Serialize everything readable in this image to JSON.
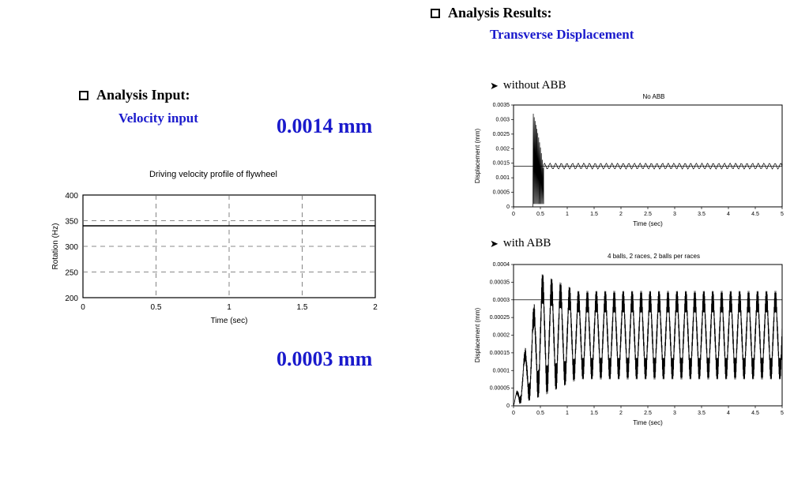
{
  "headers": {
    "results": "Analysis Results:",
    "results_sub": "Transverse Displacement",
    "input": "Analysis Input:",
    "input_sub": "Velocity input"
  },
  "readouts": {
    "r1": "0.0014 mm",
    "r2": "0.0003 mm"
  },
  "labels": {
    "without": "without ABB",
    "with": "with ABB"
  },
  "velocity_chart": {
    "type": "line",
    "title": "Driving velocity profile of flywheel",
    "xlabel": "Time (sec)",
    "ylabel": "Rotation (Hz)",
    "xlim": [
      0,
      2
    ],
    "ylim": [
      200,
      400
    ],
    "xticks": [
      0,
      0.5,
      1,
      1.5,
      2
    ],
    "yticks": [
      200,
      250,
      300,
      350,
      400
    ],
    "grid_style": "dashed",
    "grid_color": "#666666",
    "axis_color": "#000000",
    "data_y": 340,
    "line_color": "#000000",
    "line_width": 1.5,
    "background_color": "#ffffff",
    "label_fontsize": 10,
    "tick_fontsize": 10
  },
  "noabb_chart": {
    "type": "line",
    "title": "No ABB",
    "xlabel": "Time (sec)",
    "ylabel": "Displacement (mm)",
    "xlim": [
      0,
      5
    ],
    "ylim": [
      0,
      0.0035
    ],
    "xticks": [
      0,
      0.5,
      1,
      1.5,
      2,
      2.5,
      3,
      3.5,
      4,
      4.5,
      5
    ],
    "yticks": [
      0,
      0.0005,
      0.001,
      0.0015,
      0.002,
      0.0025,
      0.003,
      0.0035
    ],
    "grid_style": "none",
    "axis_color": "#000000",
    "line_color": "#000000",
    "line_width": 0.7,
    "background_color": "#ffffff",
    "ref_line_y": 0.0014,
    "transient": {
      "t_start": 0.36,
      "t_end": 0.56,
      "max_amp": 0.0032,
      "spikes": 12
    },
    "steady": {
      "t_start": 0.56,
      "base": 0.0014,
      "amp": 0.0001,
      "freq": 40
    },
    "label_fontsize": 8,
    "tick_fontsize": 7
  },
  "abb_chart": {
    "type": "line",
    "title": "4 balls, 2 races, 2 balls per races",
    "xlabel": "Time (sec)",
    "ylabel": "Displacement (mm)",
    "xlim": [
      0,
      5
    ],
    "ylim": [
      0,
      0.0004
    ],
    "xticks": [
      0,
      0.5,
      1,
      1.5,
      2,
      2.5,
      3,
      3.5,
      4,
      4.5,
      5
    ],
    "yticks": [
      0,
      5e-05,
      0.0001,
      0.00015,
      0.0002,
      0.00025,
      0.0003,
      0.00035,
      0.0004
    ],
    "grid_style": "none",
    "axis_color": "#000000",
    "line_color": "#000000",
    "line_width": 0.6,
    "background_color": "#ffffff",
    "ref_line_y": 0.0003,
    "ramp_end_t": 0.5,
    "settle_t": 1.2,
    "base": 0.0002,
    "peak_amp": 0.00014,
    "steady_amp": 0.0001,
    "osc_freq": 6,
    "noise_freq": 170,
    "noise_amp_ratio": 0.35,
    "label_fontsize": 8,
    "tick_fontsize": 7
  }
}
